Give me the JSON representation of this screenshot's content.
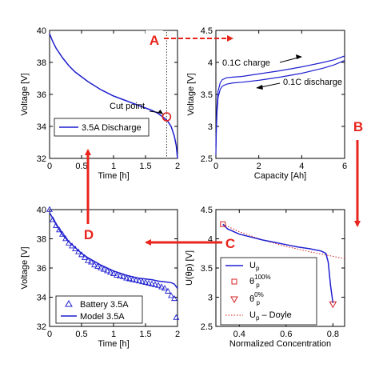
{
  "chart_data": [
    {
      "id": "top-left",
      "type": "line",
      "xlabel": "Time [h]",
      "ylabel": "Voltage [V]",
      "xlim": [
        0,
        2
      ],
      "ylim": [
        32,
        40
      ],
      "xticks": [
        "0",
        "0.5",
        "1",
        "1.5",
        "2"
      ],
      "yticks": [
        "32",
        "34",
        "36",
        "38",
        "40"
      ],
      "legend": [
        "3.5A Discharge"
      ],
      "annotation": "Cut point",
      "cut_point": [
        1.83,
        34.6
      ],
      "cut_time": 1.83,
      "series": [
        {
          "name": "3.5A Discharge",
          "color": "#1f1fd0",
          "x": [
            0,
            0.05,
            0.1,
            0.2,
            0.3,
            0.4,
            0.5,
            0.6,
            0.8,
            1.0,
            1.2,
            1.4,
            1.6,
            1.7,
            1.8,
            1.85,
            1.9,
            1.95,
            1.98,
            2.0
          ],
          "y": [
            39.8,
            39.3,
            38.9,
            38.3,
            37.8,
            37.4,
            37.1,
            36.8,
            36.3,
            35.9,
            35.6,
            35.3,
            35.0,
            34.8,
            34.5,
            34.3,
            34.0,
            33.4,
            32.8,
            32.0
          ]
        }
      ]
    },
    {
      "id": "top-right",
      "type": "line",
      "xlabel": "Capacity [Ah]",
      "ylabel": "Voltage [V]",
      "xlim": [
        0,
        6
      ],
      "ylim": [
        2.5,
        4.5
      ],
      "xticks": [
        "0",
        "2",
        "4",
        "6"
      ],
      "yticks": [
        "2.5",
        "3",
        "3.5",
        "4",
        "4.5"
      ],
      "annotations": [
        "0.1C charge",
        "0.1C discharge"
      ],
      "series": [
        {
          "name": "0.1C charge",
          "color": "#1f1fd0",
          "x": [
            0,
            0.05,
            0.1,
            0.2,
            0.3,
            0.5,
            0.8,
            1.2,
            2,
            3,
            4,
            5,
            5.5,
            6.0
          ],
          "y": [
            2.7,
            3.3,
            3.55,
            3.68,
            3.73,
            3.76,
            3.77,
            3.78,
            3.82,
            3.87,
            3.93,
            4.0,
            4.04,
            4.1
          ]
        },
        {
          "name": "0.1C discharge",
          "color": "#1f1fd0",
          "x": [
            0,
            0.02,
            0.05,
            0.1,
            0.2,
            0.3,
            0.5,
            0.8,
            1.2,
            2,
            3,
            4,
            5,
            5.5,
            6.0
          ],
          "y": [
            2.55,
            2.9,
            3.2,
            3.45,
            3.58,
            3.63,
            3.66,
            3.68,
            3.69,
            3.72,
            3.77,
            3.83,
            3.91,
            3.96,
            4.03
          ]
        }
      ]
    },
    {
      "id": "bottom-left",
      "type": "line",
      "xlabel": "Time [h]",
      "ylabel": "Voltage [V]",
      "xlim": [
        0,
        2
      ],
      "ylim": [
        32,
        40
      ],
      "xticks": [
        "0",
        "0.5",
        "1",
        "1.5",
        "2"
      ],
      "yticks": [
        "32",
        "34",
        "36",
        "38",
        "40"
      ],
      "legend": [
        "Battery 3.5A",
        "Model 3.5A"
      ],
      "series": [
        {
          "name": "Battery 3.5A",
          "marker": "triangle",
          "color": "#1f1fd0",
          "x": [
            0,
            0.05,
            0.1,
            0.15,
            0.2,
            0.25,
            0.3,
            0.35,
            0.4,
            0.45,
            0.5,
            0.55,
            0.6,
            0.65,
            0.7,
            0.75,
            0.8,
            0.85,
            0.9,
            0.95,
            1.0,
            1.05,
            1.1,
            1.15,
            1.2,
            1.25,
            1.3,
            1.35,
            1.4,
            1.45,
            1.5,
            1.55,
            1.6,
            1.65,
            1.7,
            1.75,
            1.8,
            1.85,
            1.9,
            1.95,
            1.98
          ],
          "y": [
            40.0,
            39.3,
            38.9,
            38.6,
            38.3,
            38.0,
            37.7,
            37.5,
            37.3,
            37.1,
            36.9,
            36.7,
            36.5,
            36.4,
            36.2,
            36.1,
            36.0,
            35.9,
            35.8,
            35.7,
            35.6,
            35.5,
            35.45,
            35.4,
            35.3,
            35.25,
            35.2,
            35.15,
            35.1,
            35.05,
            35.0,
            34.95,
            34.9,
            34.85,
            34.8,
            34.7,
            34.6,
            34.4,
            34.1,
            33.9,
            32.6
          ]
        },
        {
          "name": "Model 3.5A",
          "marker": "line",
          "color": "#1f1fd0",
          "x": [
            0,
            0.1,
            0.2,
            0.3,
            0.4,
            0.5,
            0.6,
            0.8,
            1.0,
            1.2,
            1.4,
            1.6,
            1.7,
            1.8,
            1.9,
            1.95,
            2.0
          ],
          "y": [
            39.8,
            39.0,
            38.3,
            37.8,
            37.4,
            37.0,
            36.7,
            36.2,
            35.8,
            35.5,
            35.3,
            35.2,
            35.1,
            35.05,
            35.0,
            34.9,
            34.6
          ]
        }
      ]
    },
    {
      "id": "bottom-right",
      "type": "line",
      "xlabel": "Normalized Concentration",
      "ylabel": "U(θp) [V]",
      "xlim": [
        0.3,
        0.85
      ],
      "ylim": [
        2.5,
        4.5
      ],
      "xticks": [
        "0.4",
        "0.6",
        "0.8"
      ],
      "yticks": [
        "2.5",
        "3",
        "3.5",
        "4",
        "4.5"
      ],
      "legend": [
        "Up",
        "θp100%",
        "θp0%",
        "Up – Doyle"
      ],
      "legend_parts": [
        {
          "main": "U",
          "sub": "p",
          "sup": ""
        },
        {
          "main": "θ",
          "sub": "p",
          "sup": "100%"
        },
        {
          "main": "θ",
          "sub": "p",
          "sup": "0%"
        },
        {
          "main": "U",
          "sub": "p",
          "sup": "",
          "tail": " – Doyle"
        }
      ],
      "series": [
        {
          "name": "Up",
          "color": "#1f1fd0",
          "x": [
            0.33,
            0.35,
            0.4,
            0.45,
            0.5,
            0.55,
            0.6,
            0.65,
            0.7,
            0.75,
            0.77,
            0.78,
            0.79,
            0.8
          ],
          "y": [
            4.25,
            4.17,
            4.08,
            4.03,
            3.98,
            3.94,
            3.9,
            3.86,
            3.83,
            3.79,
            3.75,
            3.6,
            3.2,
            2.9
          ]
        },
        {
          "name": "θp100%",
          "marker": "square",
          "color": "#d42020",
          "x": [
            0.33
          ],
          "y": [
            4.25
          ]
        },
        {
          "name": "θp0%",
          "marker": "triangle-down",
          "color": "#d42020",
          "x": [
            0.8
          ],
          "y": [
            2.88
          ]
        },
        {
          "name": "Up – Doyle",
          "style": "dotted",
          "color": "#d42020",
          "x": [
            0.33,
            0.4,
            0.5,
            0.6,
            0.7,
            0.8,
            0.85
          ],
          "y": [
            4.25,
            4.12,
            3.98,
            3.87,
            3.78,
            3.7,
            3.66
          ]
        }
      ]
    }
  ],
  "flow_labels": [
    "A",
    "B",
    "C",
    "D"
  ],
  "colors": {
    "series": "#1f1fd0",
    "arrow": "#e8241c",
    "axis": "#000000"
  }
}
